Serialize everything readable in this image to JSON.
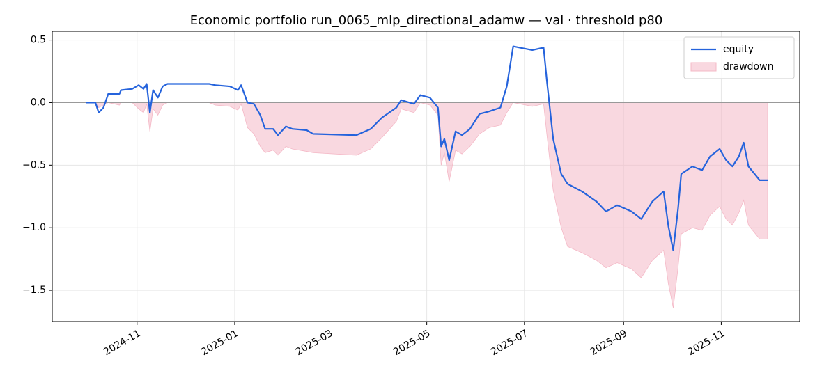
{
  "chart_data": {
    "type": "line",
    "title": "Economic portfolio run_0065_mlp_directional_adamw — val · threshold p80",
    "x": [
      "2024-09-30",
      "2024-10-06",
      "2024-10-08",
      "2024-10-11",
      "2024-10-14",
      "2024-10-21",
      "2024-10-22",
      "2024-10-29",
      "2024-11-02",
      "2024-11-05",
      "2024-11-07",
      "2024-11-09",
      "2024-11-11",
      "2024-11-14",
      "2024-11-17",
      "2024-11-20",
      "2024-12-16",
      "2024-12-20",
      "2024-12-29",
      "2025-01-03",
      "2025-01-05",
      "2025-01-09",
      "2025-01-13",
      "2025-01-17",
      "2025-01-20",
      "2025-01-25",
      "2025-01-28",
      "2025-02-02",
      "2025-02-06",
      "2025-02-15",
      "2025-02-19",
      "2025-03-18",
      "2025-03-27",
      "2025-04-03",
      "2025-04-12",
      "2025-04-15",
      "2025-04-23",
      "2025-04-27",
      "2025-05-03",
      "2025-05-08",
      "2025-05-10",
      "2025-05-12",
      "2025-05-15",
      "2025-05-19",
      "2025-05-23",
      "2025-05-28",
      "2025-06-03",
      "2025-06-09",
      "2025-06-16",
      "2025-06-20",
      "2025-06-24",
      "2025-07-06",
      "2025-07-13",
      "2025-07-15",
      "2025-07-19",
      "2025-07-24",
      "2025-07-28",
      "2025-08-06",
      "2025-08-15",
      "2025-08-21",
      "2025-08-28",
      "2025-09-06",
      "2025-09-12",
      "2025-09-19",
      "2025-09-26",
      "2025-09-29",
      "2025-10-02",
      "2025-10-05",
      "2025-10-07",
      "2025-10-14",
      "2025-10-20",
      "2025-10-25",
      "2025-10-31",
      "2025-11-04",
      "2025-11-08",
      "2025-11-12",
      "2025-11-15",
      "2025-11-18",
      "2025-11-25",
      "2025-11-30"
    ],
    "series": [
      {
        "name": "equity",
        "kind": "line",
        "color": "#2563dc",
        "values": [
          0,
          0,
          -0.08,
          -0.04,
          0.07,
          0.07,
          0.1,
          0.11,
          0.14,
          0.11,
          0.15,
          -0.08,
          0.1,
          0.04,
          0.13,
          0.15,
          0.15,
          0.14,
          0.13,
          0.1,
          0.14,
          0,
          -0.01,
          -0.1,
          -0.21,
          -0.21,
          -0.26,
          -0.19,
          -0.21,
          -0.22,
          -0.25,
          -0.26,
          -0.21,
          -0.12,
          -0.04,
          0.02,
          -0.01,
          0.06,
          0.04,
          -0.04,
          -0.35,
          -0.29,
          -0.46,
          -0.23,
          -0.26,
          -0.21,
          -0.09,
          -0.07,
          -0.04,
          0.13,
          0.45,
          0.42,
          0.44,
          0.18,
          -0.29,
          -0.57,
          -0.65,
          -0.71,
          -0.79,
          -0.87,
          -0.82,
          -0.87,
          -0.93,
          -0.79,
          -0.71,
          -0.99,
          -1.18,
          -0.85,
          -0.57,
          -0.51,
          -0.54,
          -0.43,
          -0.37,
          -0.46,
          -0.51,
          -0.43,
          -0.32,
          -0.51,
          -0.62,
          -0.62
        ]
      },
      {
        "name": "drawdown",
        "kind": "area",
        "color": "#f4b8c6",
        "values": [
          0,
          0,
          -0.04,
          -0.02,
          0,
          -0.02,
          0,
          0,
          -0.05,
          -0.08,
          -0.01,
          -0.23,
          -0.05,
          -0.1,
          -0.02,
          0,
          0,
          -0.02,
          -0.03,
          -0.06,
          -0.01,
          -0.2,
          -0.25,
          -0.35,
          -0.4,
          -0.38,
          -0.42,
          -0.35,
          -0.37,
          -0.39,
          -0.4,
          -0.42,
          -0.37,
          -0.28,
          -0.15,
          -0.05,
          -0.08,
          0,
          -0.02,
          -0.1,
          -0.5,
          -0.4,
          -0.63,
          -0.38,
          -0.41,
          -0.35,
          -0.25,
          -0.2,
          -0.18,
          -0.08,
          0,
          -0.03,
          -0.01,
          -0.25,
          -0.7,
          -1.0,
          -1.15,
          -1.2,
          -1.26,
          -1.32,
          -1.28,
          -1.33,
          -1.4,
          -1.26,
          -1.18,
          -1.45,
          -1.64,
          -1.32,
          -1.05,
          -1.0,
          -1.02,
          -0.9,
          -0.83,
          -0.93,
          -0.98,
          -0.88,
          -0.78,
          -0.98,
          -1.09,
          -1.09
        ]
      }
    ],
    "hline": 0,
    "xlim": [
      "2024-09-09",
      "2025-12-20"
    ],
    "xticks": [
      {
        "value": "2024-11-01",
        "label": "2024-11"
      },
      {
        "value": "2025-01-01",
        "label": "2025-01"
      },
      {
        "value": "2025-03-01",
        "label": "2025-03"
      },
      {
        "value": "2025-05-01",
        "label": "2025-05"
      },
      {
        "value": "2025-07-01",
        "label": "2025-07"
      },
      {
        "value": "2025-09-01",
        "label": "2025-09"
      },
      {
        "value": "2025-11-01",
        "label": "2025-11"
      }
    ],
    "ylim": [
      -1.75,
      0.57
    ],
    "yticks": [
      {
        "value": 0.5,
        "label": "0.5"
      },
      {
        "value": 0,
        "label": "0.0"
      },
      {
        "value": -0.5,
        "label": "−0.5"
      },
      {
        "value": -1,
        "label": "−1.0"
      },
      {
        "value": -1.5,
        "label": "−1.5"
      }
    ],
    "grid": true,
    "legend": "upper right"
  }
}
